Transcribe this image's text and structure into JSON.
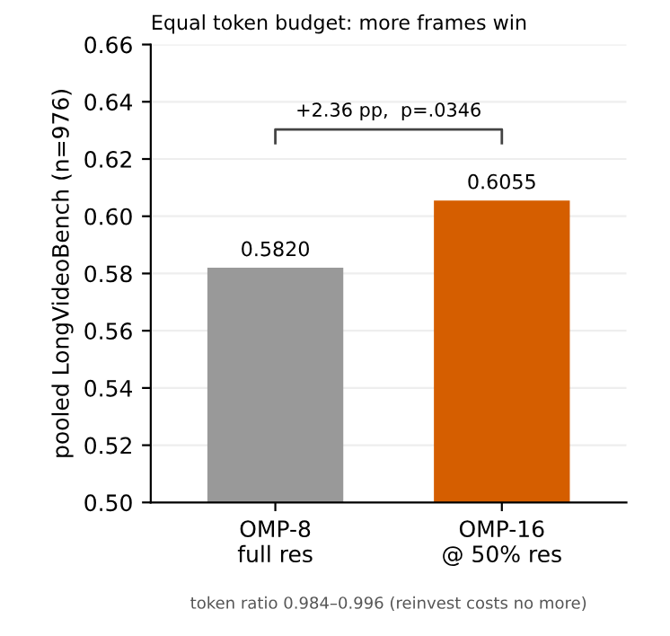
{
  "chart_data": {
    "type": "bar",
    "title": "Equal token budget: more frames win",
    "ylabel": "pooled LongVideoBench (n=976)",
    "categories": [
      "OMP-8\nfull res",
      "OMP-16\n@ 50% res"
    ],
    "values": [
      0.582,
      0.6055
    ],
    "colors": [
      "#999999",
      "#d55e00"
    ],
    "value_labels": [
      "0.5820",
      "0.6055"
    ],
    "ylim": [
      0.5,
      0.66
    ],
    "yticks": [
      {
        "value": 0.5,
        "label": "0.50"
      },
      {
        "value": 0.52,
        "label": "0.52"
      },
      {
        "value": 0.54,
        "label": "0.54"
      },
      {
        "value": 0.56,
        "label": "0.56"
      },
      {
        "value": 0.58,
        "label": "0.58"
      },
      {
        "value": 0.6,
        "label": "0.60"
      },
      {
        "value": 0.62,
        "label": "0.62"
      },
      {
        "value": 0.64,
        "label": "0.64"
      },
      {
        "value": 0.66,
        "label": "0.66"
      }
    ],
    "grid": "y",
    "annotations": [
      "+2.36 pp,  p=.0346",
      "token ratio 0.984–0.996 (reinvest costs no more)"
    ]
  }
}
